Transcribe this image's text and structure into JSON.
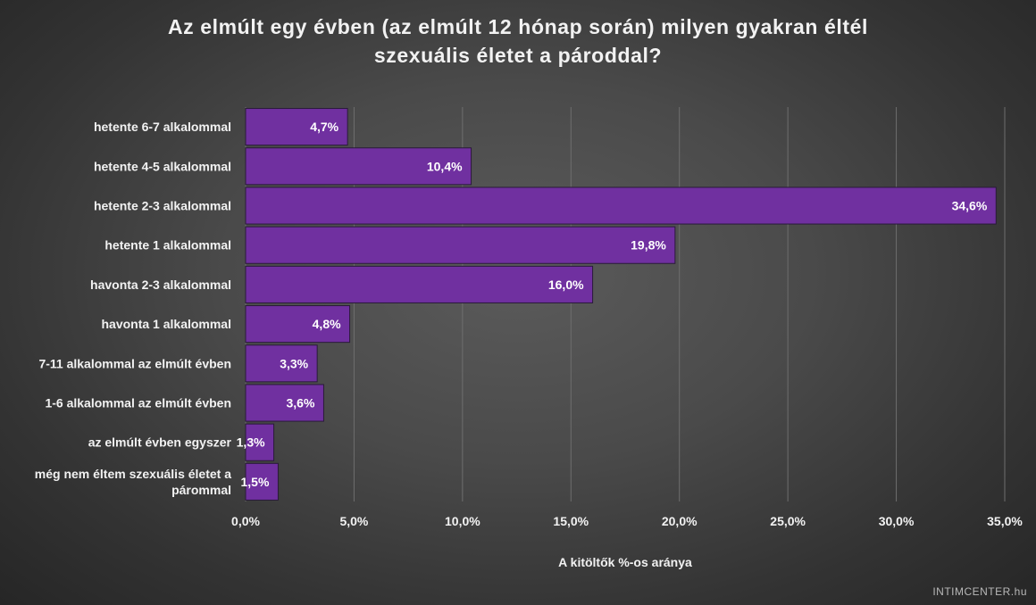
{
  "chart_data": {
    "type": "bar",
    "orientation": "horizontal",
    "title_lines": [
      "Az elmúlt egy évben (az elmúlt 12 hónap során) milyen gyakran éltél",
      "szexuális életet a pároddal?"
    ],
    "xlabel": "A kitöltők %-os aránya",
    "categories": [
      "hetente 6-7 alkalommal",
      "hetente 4-5 alkalommal",
      "hetente 2-3 alkalommal",
      "hetente 1 alkalommal",
      "havonta 2-3 alkalommal",
      "havonta 1 alkalommal",
      "7-11 alkalommal az elmúlt évben",
      "1-6 alkalommal az elmúlt évben",
      "az elmúlt évben egyszer",
      "még nem éltem szexuális életet a párommal"
    ],
    "category_label_lines": [
      [
        "hetente 6-7 alkalommal"
      ],
      [
        "hetente 4-5 alkalommal"
      ],
      [
        "hetente 2-3 alkalommal"
      ],
      [
        "hetente 1 alkalommal"
      ],
      [
        "havonta 2-3 alkalommal"
      ],
      [
        "havonta 1 alkalommal"
      ],
      [
        "7-11 alkalommal az elmúlt évben"
      ],
      [
        "1-6 alkalommal az elmúlt évben"
      ],
      [
        "az elmúlt évben egyszer"
      ],
      [
        "még nem éltem szexuális életet a",
        "párommal"
      ]
    ],
    "values": [
      4.7,
      10.4,
      34.6,
      19.8,
      16.0,
      4.8,
      3.3,
      3.6,
      1.3,
      1.5
    ],
    "data_labels": [
      "4,7%",
      "10,4%",
      "34,6%",
      "19,8%",
      "16,0%",
      "4,8%",
      "3,3%",
      "3,6%",
      "1,3%",
      "1,5%"
    ],
    "xlim": [
      0,
      35
    ],
    "xticks": [
      0,
      5,
      10,
      15,
      20,
      25,
      30,
      35
    ],
    "xtick_labels": [
      "0,0%",
      "5,0%",
      "10,0%",
      "15,0%",
      "20,0%",
      "25,0%",
      "30,0%",
      "35,0%"
    ],
    "grid": true,
    "legend": "none",
    "colors": {
      "bar": "#7030a0",
      "bar_border": "#2a1a3a",
      "gridline": "#6e6e6e",
      "text": "#f2f2f2",
      "background": "#3c3c3c"
    }
  },
  "watermark": "INTIMCENTER.hu"
}
